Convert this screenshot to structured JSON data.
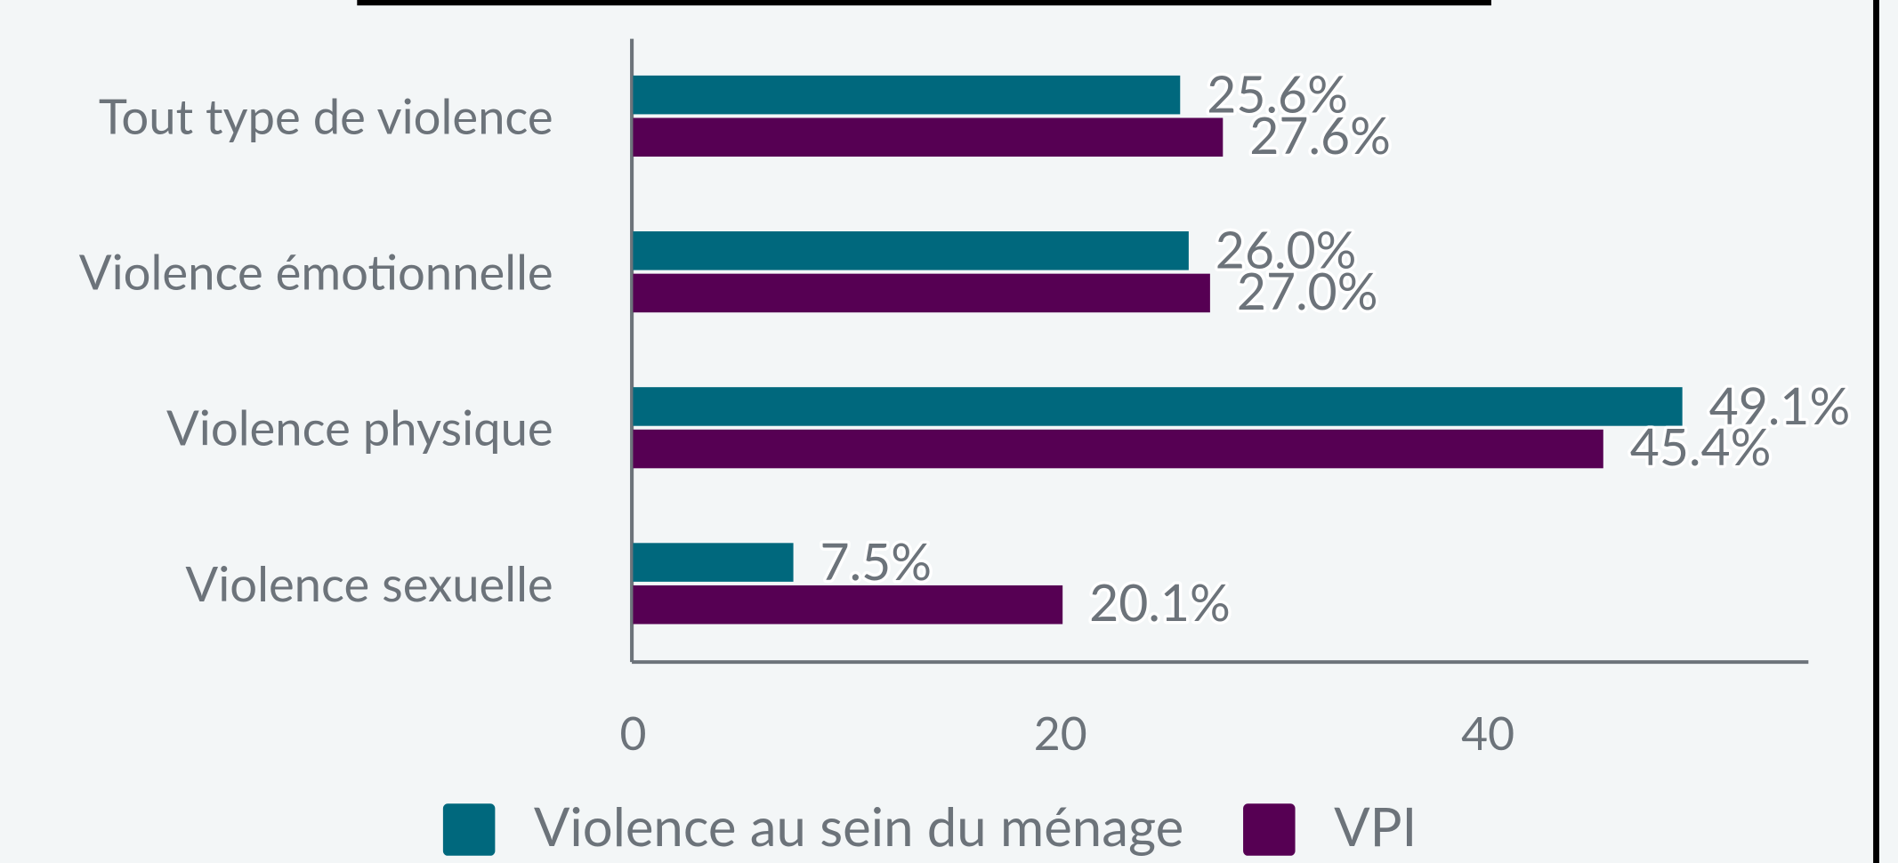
{
  "chart_data": {
    "type": "bar",
    "orientation": "horizontal",
    "categories": [
      "Tout type de violence",
      "Violence émotionnelle",
      "Violence physique",
      "Violence sexuelle"
    ],
    "series": [
      {
        "name": "Violence au sein du ménage",
        "color": "#00687d",
        "values": [
          25.6,
          26.0,
          49.1,
          7.5
        ],
        "value_labels": [
          "25.6%",
          "26.0%",
          "49.1%",
          "7.5%"
        ]
      },
      {
        "name": "VPI",
        "color": "#560053",
        "values": [
          27.6,
          27.0,
          45.4,
          20.1
        ],
        "value_labels": [
          "27.6%",
          "27.0%",
          "45.4%",
          "20.1%"
        ]
      }
    ],
    "xlim": [
      0,
      55
    ],
    "xticks": [
      0,
      20,
      40
    ],
    "grid": false,
    "legend": "bottom"
  }
}
